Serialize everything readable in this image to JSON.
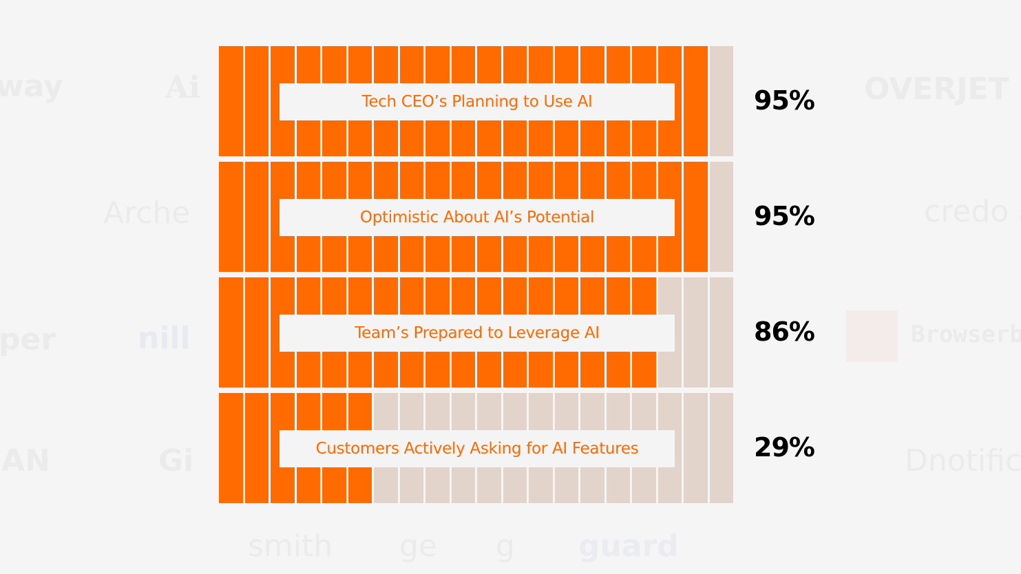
{
  "background_logos": [
    "way",
    "Ai",
    "Arche",
    "per",
    "nill",
    "AN",
    "Gi",
    "smith",
    "ge",
    "g",
    "guard",
    "OVERJET",
    "credo a",
    "Browserbo",
    "Dnotific"
  ],
  "chart_data": {
    "type": "bar",
    "style": "waffle-columns",
    "units_per_row": 20,
    "categories": [
      "Tech CEO’s Planning to Use AI",
      "Optimistic About AI’s Potential",
      "Team’s Prepared to Leverage AI",
      "Customers Actively Asking for AI Features"
    ],
    "values": [
      95,
      95,
      86,
      29
    ],
    "value_labels": [
      "95%",
      "95%",
      "86%",
      "29%"
    ],
    "colors": {
      "filled": "#ff6b00",
      "empty": "#e2d4ca",
      "label_text": "#ff6b00",
      "value_text": "#000000"
    }
  }
}
